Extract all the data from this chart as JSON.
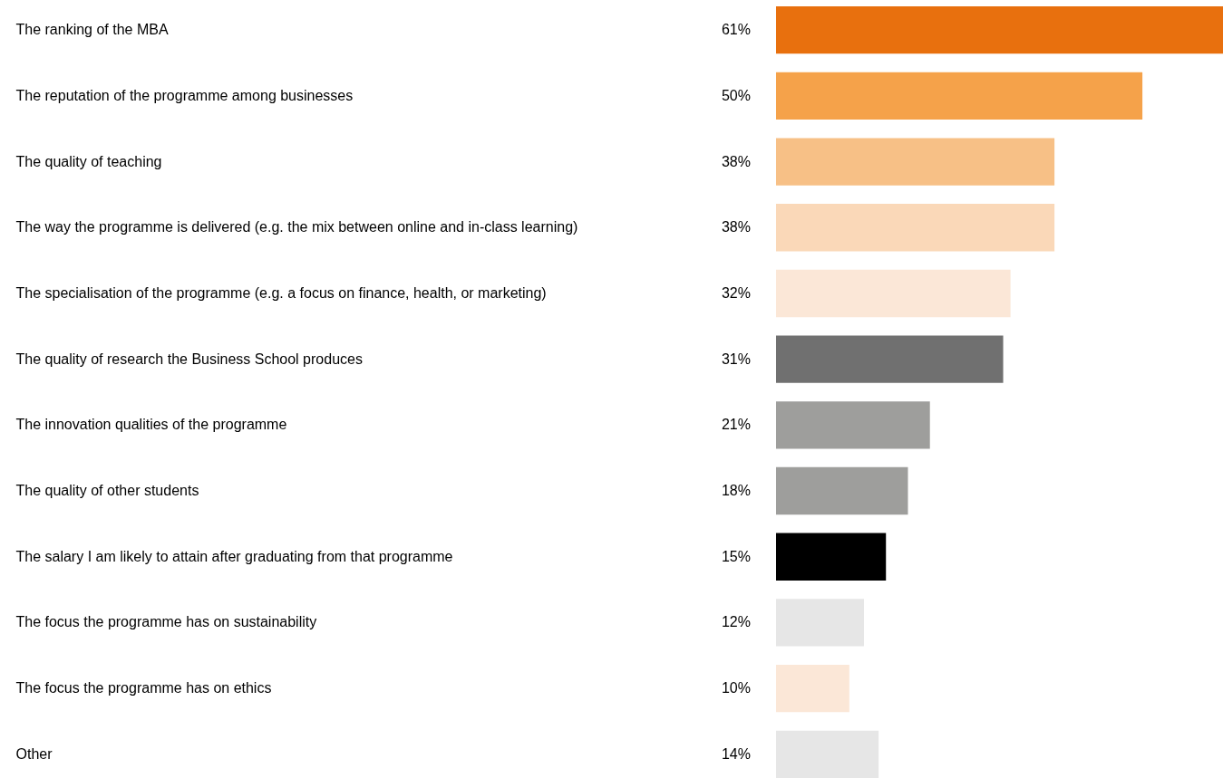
{
  "chart_data": {
    "type": "bar",
    "orientation": "horizontal",
    "categories": [
      "The ranking of the MBA",
      "The reputation of the programme among businesses",
      "The quality of teaching",
      "The way the programme is delivered (e.g. the mix between online and in-class learning)",
      "The specialisation of the programme (e.g. a focus on finance, health, or marketing)",
      "The quality of research the Business School produces",
      "The innovation qualities of the programme",
      "The quality of other students",
      "The salary I am likely to attain after graduating from that programme",
      "The focus the programme has on sustainability",
      "The focus the programme has on ethics",
      "Other"
    ],
    "values": [
      61,
      50,
      38,
      38,
      32,
      31,
      21,
      18,
      15,
      12,
      10,
      14
    ],
    "value_labels": [
      "61%",
      "50%",
      "38%",
      "38%",
      "32%",
      "31%",
      "21%",
      "18%",
      "15%",
      "12%",
      "10%",
      "14%"
    ],
    "colors": [
      "#e8700e",
      "#f5a24a",
      "#f7c086",
      "#fad8b8",
      "#fbe7d7",
      "#707070",
      "#9e9e9c",
      "#9e9e9c",
      "#000000",
      "#e6e6e6",
      "#fbe7d7",
      "#e6e6e6"
    ]
  }
}
